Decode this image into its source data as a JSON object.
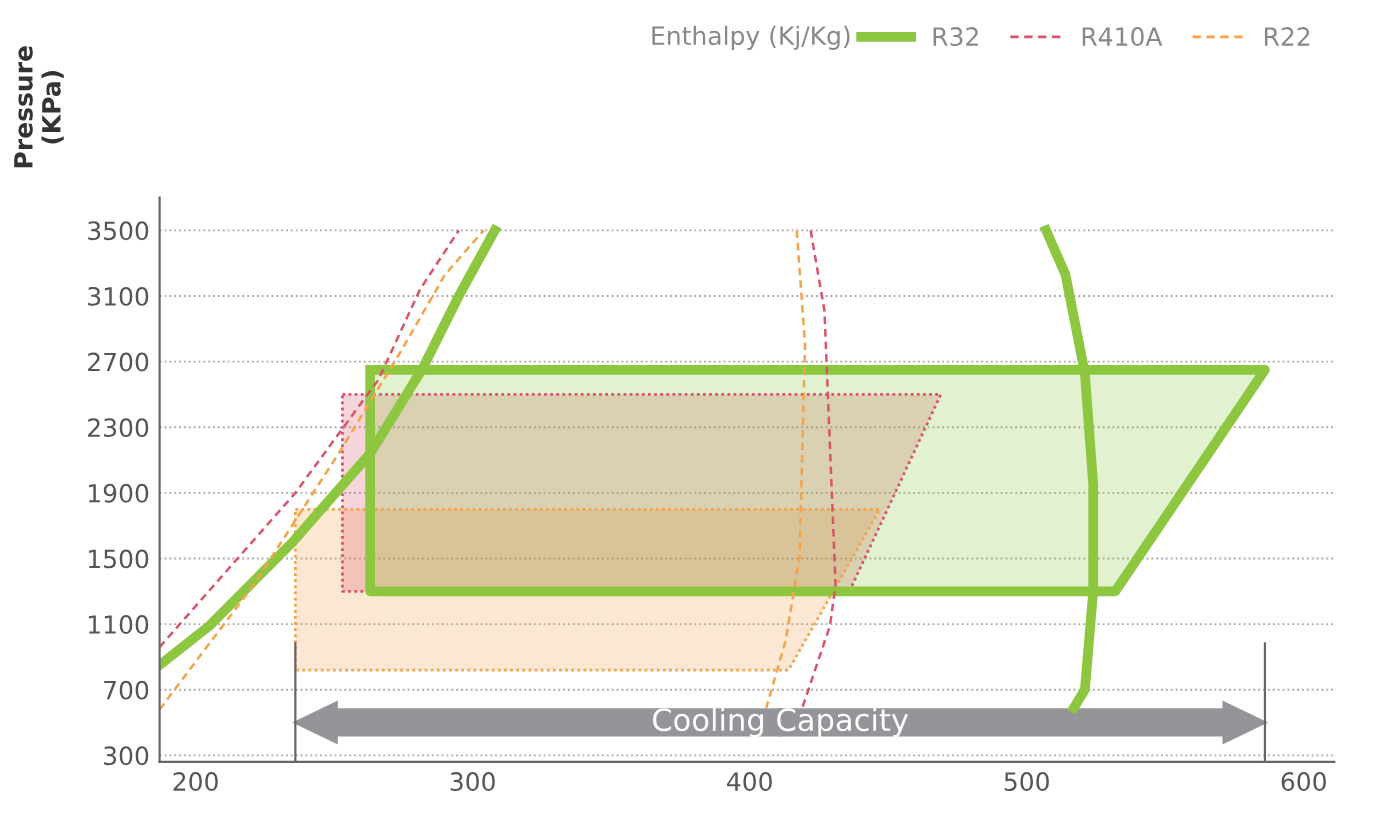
{
  "chart_data": {
    "type": "line",
    "legend_title": "Enthalpy (Kj/Kg)",
    "ylabel": "Pressure\n(KPa)",
    "xlim": [
      187,
      611
    ],
    "xticks": [
      200,
      300,
      400,
      500,
      600
    ],
    "ylim": [
      260,
      3700
    ],
    "yticks": [
      300,
      700,
      1100,
      1500,
      1900,
      2300,
      2700,
      3100,
      3500
    ],
    "grid": "y",
    "legend": "top right",
    "annotations": [
      "Cooling Capacity"
    ],
    "series": [
      {
        "type": "area",
        "color": "#f5a34a",
        "line_style": "dotted",
        "x": [
          236,
          447,
          414,
          236,
          236
        ],
        "values": [
          1800,
          1800,
          820,
          820,
          1800
        ]
      },
      {
        "type": "area",
        "color": "#d9546a",
        "line_style": "dotted",
        "x": [
          253,
          469,
          436,
          253,
          253
        ],
        "values": [
          2500,
          2500,
          1300,
          1300,
          2500
        ]
      },
      {
        "type": "area",
        "color": "#8dc63f",
        "line_style": "solid",
        "x": [
          263,
          586,
          532,
          263,
          263
        ],
        "values": [
          2650,
          2650,
          1300,
          1300,
          2650
        ]
      },
      {
        "name": "R32",
        "color": "#8dc63f",
        "line_style": "solid",
        "x": [
          187,
          205,
          235,
          263,
          282,
          295,
          308,
          null,
          507,
          514,
          521,
          524,
          524,
          521,
          517
        ],
        "values": [
          850,
          1090,
          1600,
          2140,
          2660,
          3100,
          3500,
          null,
          3500,
          3230,
          2630,
          1950,
          1300,
          700,
          590
        ]
      },
      {
        "name": "R410A",
        "color": "#d9546a",
        "line_style": "dashed",
        "x": [
          187,
          236,
          266,
          281,
          295,
          null,
          422,
          427,
          431,
          429,
          419
        ],
        "values": [
          960,
          1900,
          2590,
          3140,
          3500,
          null,
          3500,
          3010,
          1340,
          1090,
          590
        ]
      },
      {
        "name": "R22",
        "color": "#f5a34a",
        "line_style": "dashed",
        "x": [
          187,
          221,
          252,
          274,
          290,
          304,
          null,
          417,
          420,
          418,
          413,
          406
        ],
        "values": [
          580,
          1340,
          2150,
          2760,
          3230,
          3500,
          null,
          3500,
          2800,
          1510,
          1000,
          590
        ]
      }
    ]
  }
}
